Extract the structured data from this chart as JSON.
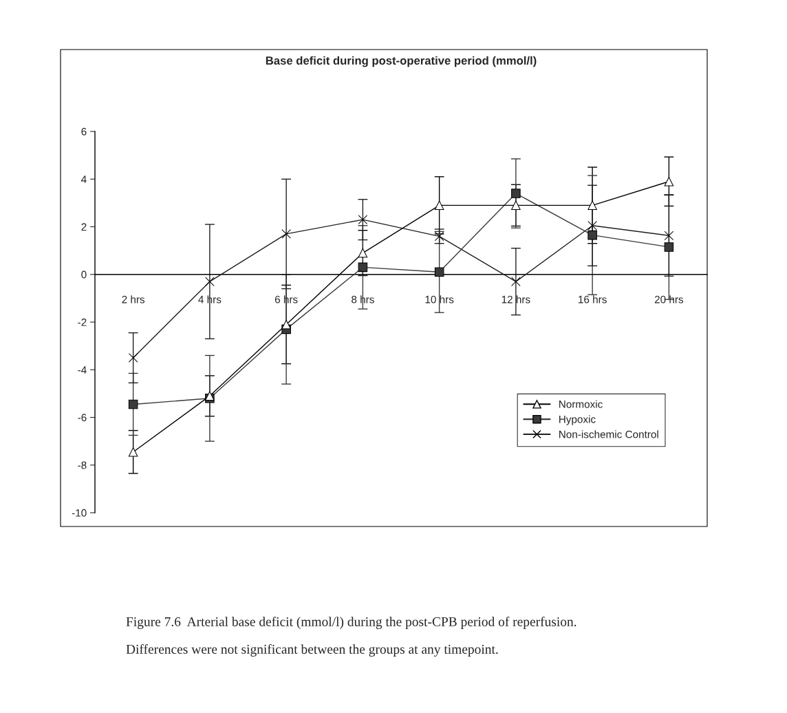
{
  "chart_data": {
    "type": "line",
    "title": "Base deficit during post-operative period (mmol/l)",
    "categories": [
      "2 hrs",
      "4 hrs",
      "6 hrs",
      "8 hrs",
      "10 hrs",
      "12 hrs",
      "16 hrs",
      "20 hrs"
    ],
    "series": [
      {
        "name": "Normoxic",
        "color": "#000000",
        "marker": "triangle",
        "values": [
          -7.45,
          -5.1,
          -2.1,
          0.9,
          2.9,
          2.9,
          2.9,
          3.9
        ],
        "errors": [
          0.9,
          0.85,
          1.65,
          0.95,
          1.2,
          0.87,
          1.6,
          1.03
        ]
      },
      {
        "name": "Hypoxic",
        "color": "#3a3a3a",
        "marker": "square",
        "values": [
          -5.45,
          -5.2,
          -2.3,
          0.3,
          0.1,
          3.4,
          1.65,
          1.15
        ],
        "errors": [
          1.3,
          1.8,
          2.3,
          1.75,
          1.7,
          1.45,
          2.5,
          2.2
        ]
      },
      {
        "name": "Non-ischemic Control",
        "color": "#1f1f1f",
        "marker": "cross",
        "values": [
          -3.5,
          -0.3,
          1.7,
          2.3,
          1.6,
          -0.3,
          2.05,
          1.63
        ],
        "errors": [
          1.05,
          2.4,
          2.3,
          0.85,
          0.3,
          1.4,
          1.69,
          1.7
        ]
      }
    ],
    "ylim": [
      -10,
      6
    ],
    "yticks": [
      -10,
      -8,
      -6,
      -4,
      -2,
      0,
      2,
      4,
      6
    ],
    "legend": "bottom right",
    "annotations": [
      "Figure 7.6  Arterial base deficit (mmol/l) during the post-CPB period of reperfusion.",
      "Differences were not significant between the groups at any timepoint."
    ]
  }
}
